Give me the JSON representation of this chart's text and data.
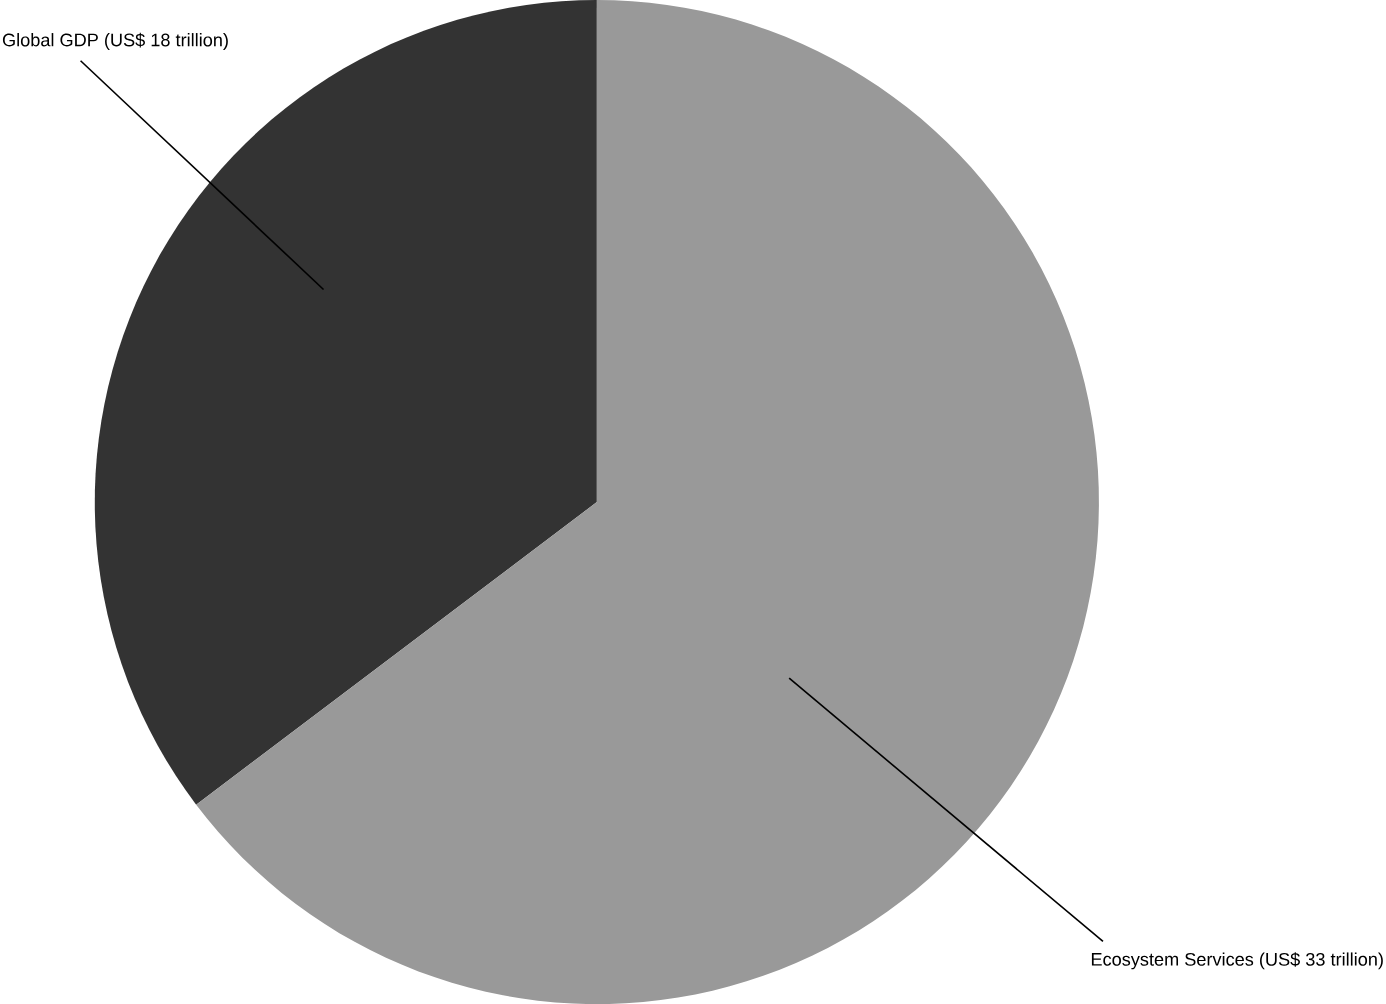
{
  "chart_data": {
    "type": "pie",
    "categories": [
      "Global GDP (US$ 18 trillion)",
      "Ecosystem Services (US$ 33 trillion)"
    ],
    "values": [
      18,
      33
    ],
    "colors": [
      "#333333",
      "#999999"
    ]
  }
}
